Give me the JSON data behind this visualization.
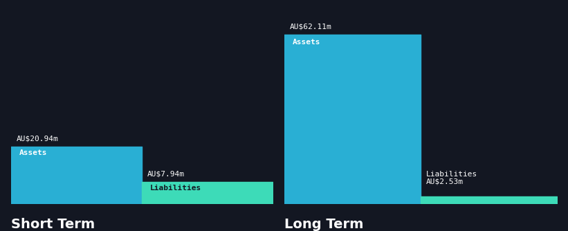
{
  "background_color": "#131722",
  "short_term": {
    "assets_value": 20.94,
    "liabilities_value": 7.94,
    "assets_label": "AU$20.94m",
    "liabilities_label": "AU$7.94m",
    "assets_color": "#29afd4",
    "liabilities_color": "#3ddbb8",
    "assets_text": "Assets",
    "liabilities_text": "Liabilities",
    "label": "Short Term"
  },
  "long_term": {
    "assets_value": 62.11,
    "liabilities_value": 2.53,
    "assets_label": "AU$62.11m",
    "liabilities_label": "AU$2.53m",
    "assets_color": "#29afd4",
    "liabilities_color": "#3ddbb8",
    "assets_text": "Assets",
    "liabilities_text": "Liabilities",
    "label": "Long Term"
  },
  "text_color": "#ffffff",
  "dark_text_color": "#131722",
  "value_fontsize": 8.0,
  "bar_label_fontsize": 8.0,
  "group_label_fontsize": 14,
  "ymax": 68,
  "baseline_color": "#2a3045"
}
